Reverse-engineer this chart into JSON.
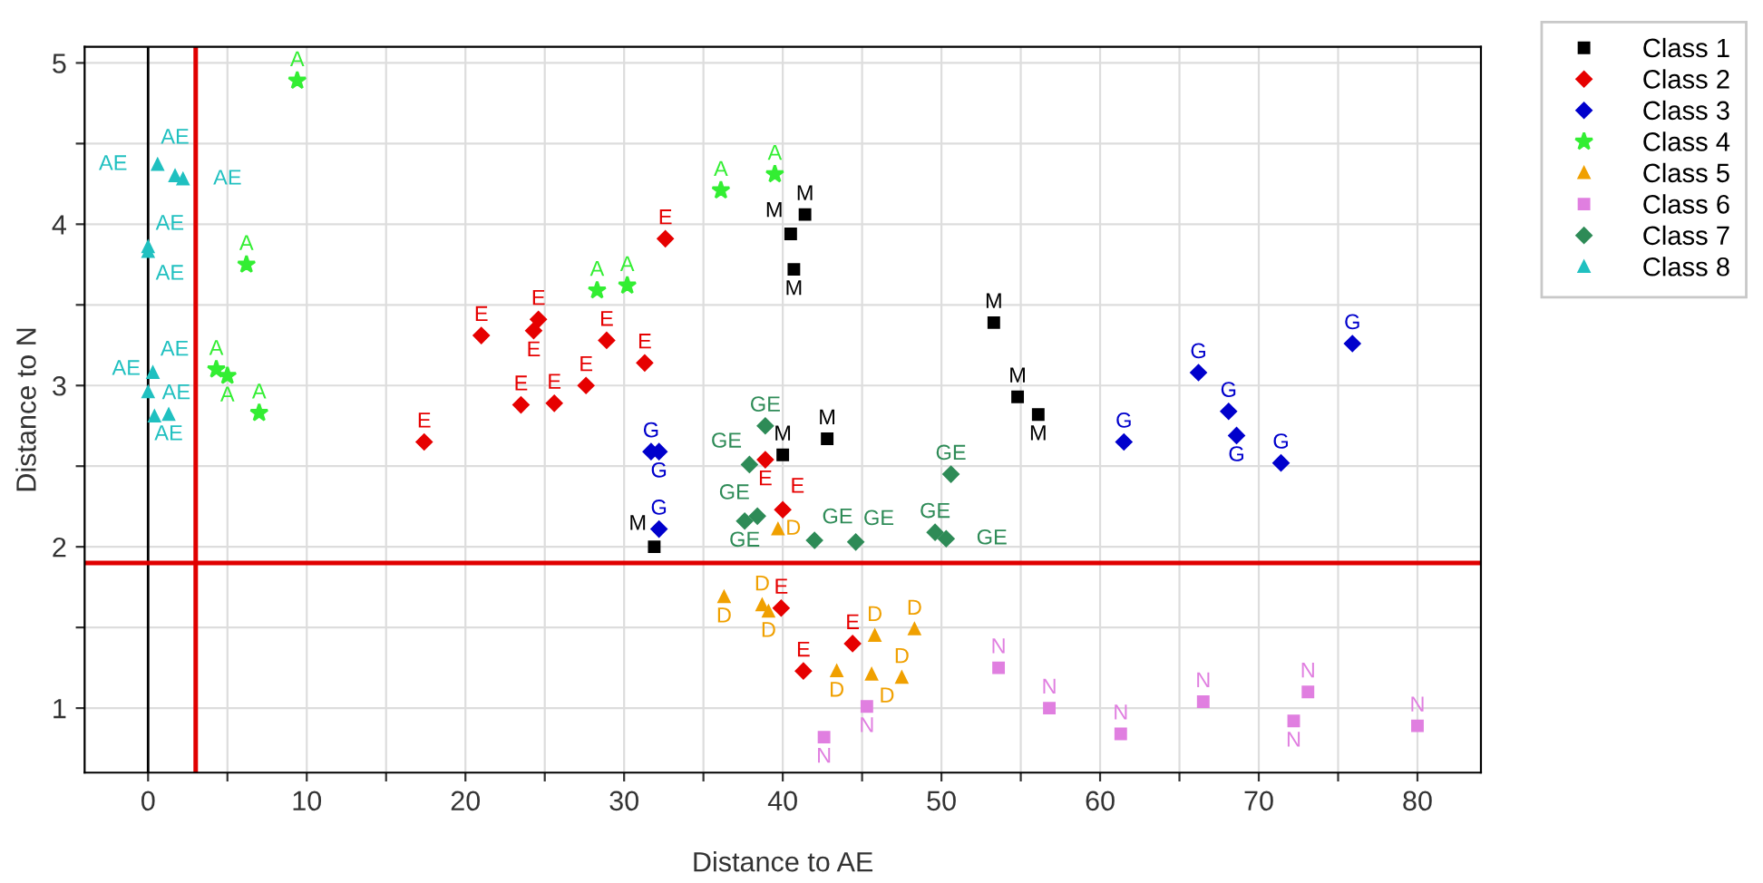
{
  "chart_data": {
    "type": "scatter",
    "xlabel": "Distance to AE",
    "ylabel": "Distance to N",
    "xlim": [
      -4,
      84
    ],
    "ylim": [
      0.6,
      5.1
    ],
    "xticks": [
      0,
      {
        "value": 5,
        "label": null
      },
      10,
      {
        "value": 15,
        "label": null
      },
      20,
      {
        "value": 25,
        "label": null
      },
      30,
      {
        "value": 35,
        "label": null
      },
      40,
      {
        "value": 45,
        "label": null
      },
      50,
      {
        "value": 55,
        "label": null
      },
      60,
      {
        "value": 65,
        "label": null
      },
      70,
      {
        "value": 75,
        "label": null
      },
      80
    ],
    "yticks": [
      1,
      {
        "value": 1.5,
        "label": null
      },
      2,
      {
        "value": 2.5,
        "label": null
      },
      3,
      {
        "value": 3.5,
        "label": null
      },
      4,
      {
        "value": 4.5,
        "label": null
      },
      5
    ],
    "grid": true,
    "legend": "top right",
    "ref_lines": [
      {
        "axis": "x",
        "value": 0,
        "color": "#000000"
      },
      {
        "axis": "x",
        "value": 3,
        "color": "#e00000"
      },
      {
        "axis": "y",
        "value": 1.9,
        "color": "#e00000"
      }
    ],
    "series": [
      {
        "name": "Class 1",
        "color": "#000000",
        "marker": "square",
        "x": [
          41.4,
          40.5,
          40.7,
          53.3,
          54.8,
          56.1,
          42.8,
          40.0,
          31.9
        ],
        "values": [
          4.06,
          3.94,
          3.72,
          3.39,
          2.93,
          2.82,
          2.67,
          2.57,
          2.0
        ],
        "value_labels": [
          "M",
          "M",
          "M",
          "M",
          "M",
          "M",
          "M",
          "M",
          "M"
        ]
      },
      {
        "name": "Class 2",
        "color": "#e60000",
        "marker": "diamond",
        "x": [
          17.4,
          21.0,
          23.5,
          24.3,
          24.6,
          25.6,
          27.6,
          28.9,
          31.3,
          32.6,
          38.9,
          40.0,
          39.9,
          44.4,
          41.3
        ],
        "values": [
          2.65,
          3.31,
          2.88,
          3.34,
          3.41,
          2.89,
          3.0,
          3.28,
          3.14,
          3.91,
          2.54,
          2.23,
          1.62,
          1.4,
          1.23
        ],
        "value_labels": [
          "E",
          "E",
          "E",
          "E",
          "E",
          "E",
          "E",
          "E",
          "E",
          "E",
          "E",
          "E",
          "E",
          "E",
          "E"
        ]
      },
      {
        "name": "Class 3",
        "color": "#0000cc",
        "marker": "diamond",
        "x": [
          75.9,
          66.2,
          68.1,
          68.6,
          61.5,
          71.4,
          31.7,
          32.2,
          32.2
        ],
        "values": [
          3.26,
          3.08,
          2.84,
          2.69,
          2.65,
          2.52,
          2.59,
          2.59,
          2.11
        ],
        "value_labels": [
          "G",
          "G",
          "G",
          "G",
          "G",
          "G",
          "G",
          "G",
          "G"
        ]
      },
      {
        "name": "Class 4",
        "color": "#33ee33",
        "marker": "star",
        "x": [
          9.4,
          6.2,
          4.3,
          5.0,
          7.0,
          28.3,
          30.2,
          36.1,
          39.5
        ],
        "values": [
          4.89,
          3.75,
          3.1,
          3.06,
          2.83,
          3.59,
          3.62,
          4.21,
          4.31
        ],
        "value_labels": [
          "A",
          "A",
          "A",
          "A",
          "A",
          "A",
          "A",
          "A",
          "A"
        ]
      },
      {
        "name": "Class 5",
        "color": "#f0a000",
        "marker": "triangle",
        "x": [
          36.3,
          38.7,
          39.1,
          39.7,
          45.8,
          48.3,
          43.4,
          45.6,
          47.5
        ],
        "values": [
          1.69,
          1.64,
          1.6,
          2.11,
          1.45,
          1.49,
          1.23,
          1.21,
          1.19
        ],
        "value_labels": [
          "D",
          "D",
          "D",
          "D",
          "D",
          "D",
          "D",
          "D",
          "D"
        ]
      },
      {
        "name": "Class 6",
        "color": "#e07fe0",
        "marker": "square",
        "x": [
          53.6,
          56.8,
          45.3,
          42.6,
          61.3,
          66.5,
          73.1,
          72.2,
          80.0
        ],
        "values": [
          1.25,
          1.0,
          1.01,
          0.82,
          0.84,
          1.04,
          1.1,
          0.92,
          0.89
        ],
        "value_labels": [
          "N",
          "N",
          "N",
          "N",
          "N",
          "N",
          "N",
          "N",
          "N"
        ]
      },
      {
        "name": "Class 7",
        "color": "#2e8b57",
        "marker": "diamond",
        "x": [
          38.9,
          37.9,
          50.6,
          37.6,
          38.4,
          42.0,
          44.6,
          49.6,
          50.3
        ],
        "values": [
          2.75,
          2.51,
          2.45,
          2.16,
          2.19,
          2.04,
          2.03,
          2.09,
          2.05
        ],
        "value_labels": [
          "GE",
          "GE",
          "GE",
          "GE",
          "GE",
          "GE",
          "GE",
          "GE",
          "GE"
        ]
      },
      {
        "name": "Class 8",
        "color": "#20c0c0",
        "marker": "triangle",
        "x": [
          0.6,
          1.7,
          2.2,
          0.0,
          0.0,
          0.3,
          0.0,
          0.4,
          1.3
        ],
        "values": [
          4.37,
          4.3,
          4.28,
          3.86,
          3.83,
          3.08,
          2.96,
          2.81,
          2.82
        ],
        "value_labels": [
          "AE",
          "AE",
          "AE",
          "AE",
          "AE",
          "AE",
          "AE",
          "AE",
          "AE"
        ]
      }
    ]
  }
}
